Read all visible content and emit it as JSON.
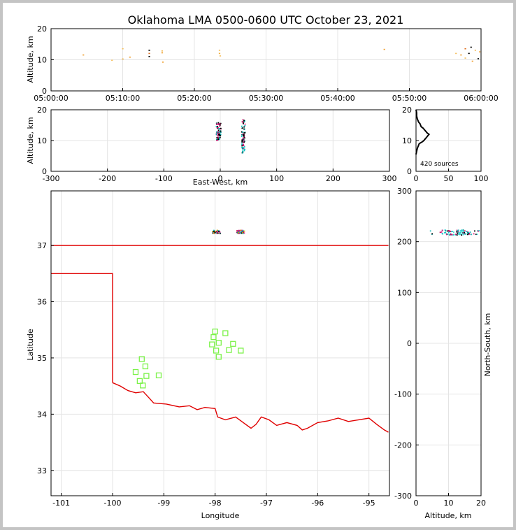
{
  "chart_data": [
    {
      "id": "time-altitude",
      "type": "scatter",
      "title": "Oklahoma LMA 0500-0600 UTC October 23, 2021",
      "xlabel": "",
      "ylabel": "Altitude, km",
      "x_ticks": [
        "05:00:00",
        "05:10:00",
        "05:20:00",
        "05:30:00",
        "05:40:00",
        "05:50:00",
        "06:00:00"
      ],
      "xlim_minutes": [
        0,
        60
      ],
      "ylim": [
        0,
        20
      ],
      "y_ticks": [
        0,
        10,
        20
      ],
      "points": [
        {
          "t": 4.5,
          "z": 11.5,
          "c": "#f0a030"
        },
        {
          "t": 8.5,
          "z": 9.8,
          "c": "#f5c060"
        },
        {
          "t": 10.0,
          "z": 13.5,
          "c": "#f5c060"
        },
        {
          "t": 10.0,
          "z": 10.2,
          "c": "#f0b040"
        },
        {
          "t": 11.0,
          "z": 10.8,
          "c": "#f0a030"
        },
        {
          "t": 13.7,
          "z": 13.0,
          "c": "#000000"
        },
        {
          "t": 13.7,
          "z": 12.0,
          "c": "#e07020"
        },
        {
          "t": 13.7,
          "z": 11.0,
          "c": "#000000"
        },
        {
          "t": 15.5,
          "z": 12.8,
          "c": "#f5c060"
        },
        {
          "t": 15.5,
          "z": 12.2,
          "c": "#f0a030"
        },
        {
          "t": 15.6,
          "z": 9.2,
          "c": "#f0a030"
        },
        {
          "t": 23.5,
          "z": 13.0,
          "c": "#f5c060"
        },
        {
          "t": 23.5,
          "z": 12.0,
          "c": "#f0b040"
        },
        {
          "t": 23.6,
          "z": 11.2,
          "c": "#f5c060"
        },
        {
          "t": 46.5,
          "z": 13.3,
          "c": "#f0a030"
        },
        {
          "t": 56.5,
          "z": 12.0,
          "c": "#f5c060"
        },
        {
          "t": 57.2,
          "z": 11.5,
          "c": "#f0a030"
        },
        {
          "t": 57.8,
          "z": 13.5,
          "c": "#e07020"
        },
        {
          "t": 57.8,
          "z": 10.5,
          "c": "#f5c060"
        },
        {
          "t": 58.3,
          "z": 12.0,
          "c": "#000000"
        },
        {
          "t": 58.6,
          "z": 14.0,
          "c": "#000000"
        },
        {
          "t": 58.8,
          "z": 9.5,
          "c": "#f0a030"
        },
        {
          "t": 59.2,
          "z": 13.0,
          "c": "#f5c060"
        },
        {
          "t": 59.6,
          "z": 10.3,
          "c": "#000000"
        },
        {
          "t": 59.8,
          "z": 12.5,
          "c": "#f0a030"
        }
      ]
    },
    {
      "id": "ew-altitude",
      "type": "scatter",
      "xlabel": "East-West, km",
      "ylabel": "Altitude, km",
      "xlim": [
        -300,
        300
      ],
      "ylim": [
        0,
        20
      ],
      "x_ticks": [
        -300,
        -200,
        -100,
        0,
        100,
        200,
        300
      ],
      "y_ticks": [
        0,
        10,
        20
      ],
      "clusters": [
        {
          "x": -3,
          "xs": 4,
          "zmin": 10,
          "zmax": 16
        },
        {
          "x": 41,
          "xs": 3,
          "zmin": 6,
          "zmax": 17
        }
      ],
      "colors": [
        "#000000",
        "#009090",
        "#00c0c0",
        "#c00060",
        "#e02080",
        "#000000"
      ]
    },
    {
      "id": "altitude-histogram",
      "type": "line",
      "xlim": [
        0,
        100
      ],
      "ylim": [
        0,
        20
      ],
      "x_ticks": [
        0,
        50,
        100
      ],
      "y_ticks": [
        0,
        10,
        20
      ],
      "annotation": "420 sources",
      "profile": [
        {
          "z": 5.5,
          "n": 0
        },
        {
          "z": 6.5,
          "n": 1
        },
        {
          "z": 7.5,
          "n": 2
        },
        {
          "z": 8.5,
          "n": 4
        },
        {
          "z": 9.0,
          "n": 5
        },
        {
          "z": 9.5,
          "n": 9
        },
        {
          "z": 10.0,
          "n": 12
        },
        {
          "z": 10.5,
          "n": 14
        },
        {
          "z": 11.0,
          "n": 16
        },
        {
          "z": 11.5,
          "n": 18
        },
        {
          "z": 12.0,
          "n": 20
        },
        {
          "z": 12.5,
          "n": 17
        },
        {
          "z": 13.0,
          "n": 15
        },
        {
          "z": 13.5,
          "n": 13
        },
        {
          "z": 14.0,
          "n": 11
        },
        {
          "z": 14.5,
          "n": 8
        },
        {
          "z": 15.0,
          "n": 7
        },
        {
          "z": 15.5,
          "n": 6
        },
        {
          "z": 16.0,
          "n": 4
        },
        {
          "z": 16.5,
          "n": 3
        },
        {
          "z": 17.0,
          "n": 2
        },
        {
          "z": 18.0,
          "n": 1
        },
        {
          "z": 19.0,
          "n": 1
        },
        {
          "z": 20.0,
          "n": 0
        }
      ]
    },
    {
      "id": "plan-view",
      "type": "scatter",
      "xlabel": "Longitude",
      "ylabel": "Latitude",
      "xlim": [
        -101.2,
        -94.6
      ],
      "ylim": [
        32.55,
        37.97
      ],
      "x_ticks": [
        -101,
        -100,
        -99,
        -98,
        -97,
        -96,
        -95
      ],
      "y_ticks": [
        33,
        34,
        35,
        36,
        37
      ],
      "ok_border": [
        [
          -101.2,
          37.0
        ],
        [
          -94.62,
          37.0
        ]
      ],
      "panhandle_south": [
        [
          -101.2,
          36.5
        ],
        [
          -100.0,
          36.5
        ],
        [
          -100.0,
          34.56
        ]
      ],
      "red_river": [
        [
          -100.0,
          34.56
        ],
        [
          -99.85,
          34.5
        ],
        [
          -99.7,
          34.42
        ],
        [
          -99.55,
          34.38
        ],
        [
          -99.4,
          34.4
        ],
        [
          -99.25,
          34.25
        ],
        [
          -99.2,
          34.2
        ],
        [
          -98.95,
          34.18
        ],
        [
          -98.7,
          34.13
        ],
        [
          -98.5,
          34.15
        ],
        [
          -98.35,
          34.08
        ],
        [
          -98.2,
          34.12
        ],
        [
          -98.0,
          34.1
        ],
        [
          -97.95,
          33.95
        ],
        [
          -97.8,
          33.9
        ],
        [
          -97.6,
          33.95
        ],
        [
          -97.45,
          33.85
        ],
        [
          -97.3,
          33.75
        ],
        [
          -97.2,
          33.82
        ],
        [
          -97.1,
          33.95
        ],
        [
          -96.95,
          33.9
        ],
        [
          -96.8,
          33.8
        ],
        [
          -96.6,
          33.85
        ],
        [
          -96.4,
          33.8
        ],
        [
          -96.3,
          33.72
        ],
        [
          -96.2,
          33.75
        ],
        [
          -96.0,
          33.85
        ],
        [
          -95.8,
          33.88
        ],
        [
          -95.6,
          33.93
        ],
        [
          -95.4,
          33.87
        ],
        [
          -95.2,
          33.9
        ],
        [
          -95.0,
          33.93
        ],
        [
          -94.85,
          33.82
        ],
        [
          -94.7,
          33.72
        ],
        [
          -94.62,
          33.68
        ]
      ],
      "stations": [
        {
          "lon": -98.0,
          "lat": 35.47
        },
        {
          "lon": -97.8,
          "lat": 35.44
        },
        {
          "lon": -98.03,
          "lat": 35.37
        },
        {
          "lon": -97.93,
          "lat": 35.27
        },
        {
          "lon": -98.06,
          "lat": 35.24
        },
        {
          "lon": -97.65,
          "lat": 35.25
        },
        {
          "lon": -97.98,
          "lat": 35.13
        },
        {
          "lon": -97.73,
          "lat": 35.14
        },
        {
          "lon": -97.5,
          "lat": 35.13
        },
        {
          "lon": -97.93,
          "lat": 35.02
        },
        {
          "lon": -99.43,
          "lat": 34.98
        },
        {
          "lon": -99.36,
          "lat": 34.85
        },
        {
          "lon": -99.55,
          "lat": 34.75
        },
        {
          "lon": -99.34,
          "lat": 34.68
        },
        {
          "lon": -99.1,
          "lat": 34.69
        },
        {
          "lon": -99.47,
          "lat": 34.59
        },
        {
          "lon": -99.41,
          "lat": 34.51
        }
      ],
      "sources": [
        {
          "lon": -97.98,
          "lat": 37.24
        },
        {
          "lon": -97.5,
          "lat": 37.24
        }
      ]
    },
    {
      "id": "ns-altitude",
      "type": "scatter",
      "xlabel": "Altitude, km",
      "ylabel": "North-South, km",
      "xlim": [
        0,
        20
      ],
      "ylim": [
        -300,
        300
      ],
      "x_ticks": [
        0,
        10,
        20
      ],
      "y_ticks": [
        -300,
        -200,
        -100,
        0,
        100,
        200,
        300
      ],
      "y_center": 218,
      "z_range": [
        4,
        20
      ]
    }
  ]
}
